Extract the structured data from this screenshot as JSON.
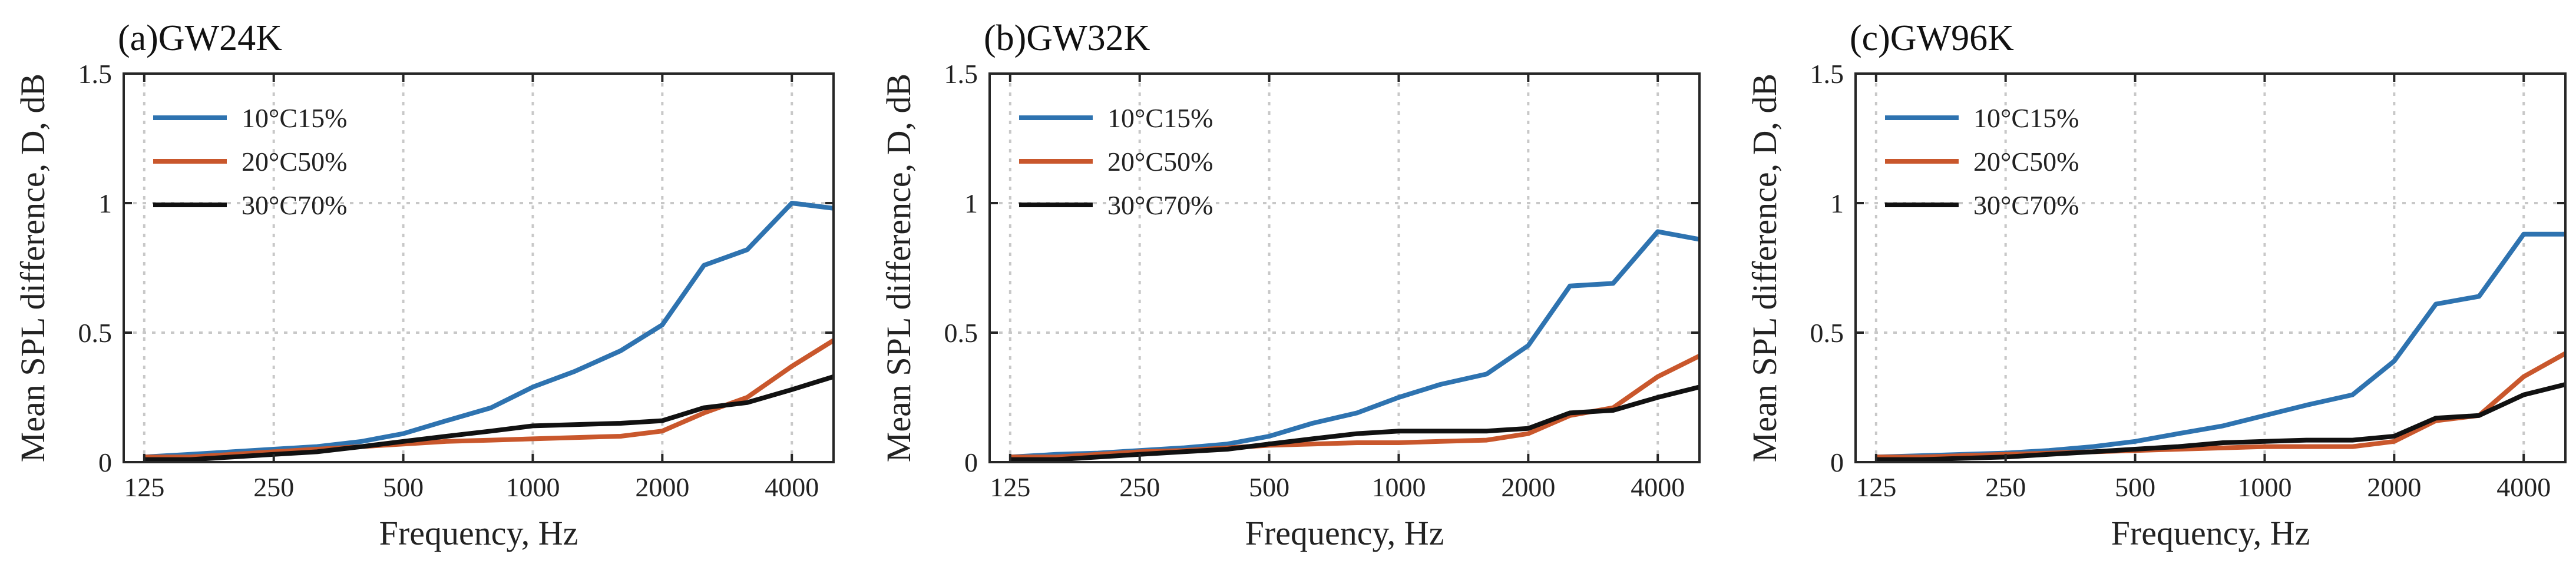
{
  "chart_data": [
    {
      "type": "line",
      "title": "(a)GW24K",
      "xlabel": "Frequency, Hz",
      "ylabel": "Mean SPL difference, D, dB",
      "xscale": "log",
      "xlim": [
        112,
        5000
      ],
      "ylim": [
        0,
        1.5
      ],
      "xticks": [
        125,
        250,
        500,
        1000,
        2000,
        4000
      ],
      "xtick_labels": [
        "125",
        "250",
        "500",
        "1000",
        "2000",
        "4000"
      ],
      "yticks": [
        0,
        0.5,
        1,
        1.5
      ],
      "ytick_labels": [
        "0",
        "0.5",
        "1",
        "1.5"
      ],
      "grid": true,
      "legend_position": "top-left",
      "x": [
        125,
        160,
        200,
        250,
        315,
        400,
        500,
        630,
        800,
        1000,
        1250,
        1600,
        2000,
        2500,
        3150,
        4000,
        5000
      ],
      "series": [
        {
          "name": "10°C15%",
          "color": "#2e73b0",
          "values": [
            0.02,
            0.03,
            0.04,
            0.05,
            0.06,
            0.08,
            0.11,
            0.16,
            0.21,
            0.29,
            0.35,
            0.43,
            0.53,
            0.76,
            0.82,
            1.0,
            0.98
          ]
        },
        {
          "name": "20°C50%",
          "color": "#c9572c",
          "values": [
            0.02,
            0.02,
            0.03,
            0.04,
            0.05,
            0.06,
            0.07,
            0.08,
            0.085,
            0.09,
            0.095,
            0.1,
            0.12,
            0.19,
            0.25,
            0.37,
            0.47
          ]
        },
        {
          "name": "30°C70%",
          "color": "#111111",
          "values": [
            0.01,
            0.01,
            0.02,
            0.03,
            0.04,
            0.06,
            0.08,
            0.1,
            0.12,
            0.14,
            0.145,
            0.15,
            0.16,
            0.21,
            0.23,
            0.28,
            0.33
          ]
        }
      ]
    },
    {
      "type": "line",
      "title": "(b)GW32K",
      "xlabel": "Frequency, Hz",
      "ylabel": "Mean SPL difference, D, dB",
      "xscale": "log",
      "xlim": [
        112,
        5000
      ],
      "ylim": [
        0,
        1.5
      ],
      "xticks": [
        125,
        250,
        500,
        1000,
        2000,
        4000
      ],
      "xtick_labels": [
        "125",
        "250",
        "500",
        "1000",
        "2000",
        "4000"
      ],
      "yticks": [
        0,
        0.5,
        1,
        1.5
      ],
      "ytick_labels": [
        "0",
        "0.5",
        "1",
        "1.5"
      ],
      "grid": true,
      "legend_position": "top-left",
      "x": [
        125,
        160,
        200,
        250,
        315,
        400,
        500,
        630,
        800,
        1000,
        1250,
        1600,
        2000,
        2500,
        3150,
        4000,
        5000
      ],
      "series": [
        {
          "name": "10°C15%",
          "color": "#2e73b0",
          "values": [
            0.02,
            0.03,
            0.035,
            0.045,
            0.055,
            0.07,
            0.1,
            0.15,
            0.19,
            0.25,
            0.3,
            0.34,
            0.45,
            0.68,
            0.69,
            0.89,
            0.86
          ]
        },
        {
          "name": "20°C50%",
          "color": "#c9572c",
          "values": [
            0.02,
            0.02,
            0.03,
            0.04,
            0.045,
            0.055,
            0.065,
            0.07,
            0.075,
            0.075,
            0.08,
            0.085,
            0.11,
            0.18,
            0.21,
            0.33,
            0.41
          ]
        },
        {
          "name": "30°C70%",
          "color": "#111111",
          "values": [
            0.01,
            0.01,
            0.02,
            0.03,
            0.04,
            0.05,
            0.07,
            0.09,
            0.11,
            0.12,
            0.12,
            0.12,
            0.13,
            0.19,
            0.2,
            0.25,
            0.29
          ]
        }
      ]
    },
    {
      "type": "line",
      "title": "(c)GW96K",
      "xlabel": "Frequency, Hz",
      "ylabel": "Mean SPL difference, D, dB",
      "xscale": "log",
      "xlim": [
        112,
        5000
      ],
      "ylim": [
        0,
        1.5
      ],
      "xticks": [
        125,
        250,
        500,
        1000,
        2000,
        4000
      ],
      "xtick_labels": [
        "125",
        "250",
        "500",
        "1000",
        "2000",
        "4000"
      ],
      "yticks": [
        0,
        0.5,
        1,
        1.5
      ],
      "ytick_labels": [
        "0",
        "0.5",
        "1",
        "1.5"
      ],
      "grid": true,
      "legend_position": "top-left",
      "x": [
        125,
        160,
        200,
        250,
        315,
        400,
        500,
        630,
        800,
        1000,
        1250,
        1600,
        2000,
        2500,
        3150,
        4000,
        5000
      ],
      "series": [
        {
          "name": "10°C15%",
          "color": "#2e73b0",
          "values": [
            0.02,
            0.025,
            0.03,
            0.035,
            0.045,
            0.06,
            0.08,
            0.11,
            0.14,
            0.18,
            0.22,
            0.26,
            0.39,
            0.61,
            0.64,
            0.88,
            0.88
          ]
        },
        {
          "name": "20°C50%",
          "color": "#c9572c",
          "values": [
            0.02,
            0.02,
            0.025,
            0.03,
            0.035,
            0.04,
            0.045,
            0.05,
            0.055,
            0.06,
            0.06,
            0.06,
            0.08,
            0.16,
            0.18,
            0.33,
            0.42
          ]
        },
        {
          "name": "30°C70%",
          "color": "#111111",
          "values": [
            0.01,
            0.01,
            0.015,
            0.02,
            0.03,
            0.04,
            0.05,
            0.06,
            0.075,
            0.08,
            0.085,
            0.085,
            0.1,
            0.17,
            0.18,
            0.26,
            0.3
          ]
        }
      ]
    }
  ]
}
